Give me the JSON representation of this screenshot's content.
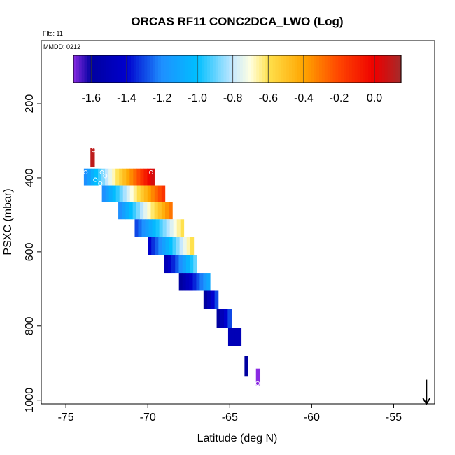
{
  "chart_data": {
    "type": "heatmap",
    "title": "ORCAS RF11 CONC2DCA_LWO (Log)",
    "flights_label": "Flts: 11",
    "date_label": "MMDD: 0212",
    "xlabel": "Latitude (deg N)",
    "ylabel": "PSXC (mbar)",
    "xlim": [
      -76.5,
      -52.5
    ],
    "ylim": [
      1010,
      30
    ],
    "y_reversed": true,
    "x_ticks": [
      -75,
      -70,
      -65,
      -60,
      -55
    ],
    "y_ticks": [
      200,
      400,
      600,
      800,
      1000
    ],
    "colorbar": {
      "range": [
        -1.7,
        0.15
      ],
      "ticks": [
        -1.6,
        -1.4,
        -1.2,
        -1.0,
        -0.8,
        -0.6,
        -0.4,
        -0.2,
        0.0
      ],
      "tick_labels": [
        "-1.6",
        "-1.4",
        "-1.2",
        "-1.0",
        "-0.8",
        "-0.6",
        "-0.4",
        "-0.2",
        "0.0"
      ],
      "divisions": [
        -1.6,
        -1.4,
        -1.2,
        -1.0,
        -0.8,
        -0.6,
        -0.4,
        -0.2,
        0.0
      ],
      "stops": [
        {
          "v": -1.7,
          "c": "#8a2be2"
        },
        {
          "v": -1.6,
          "c": "#0000a0"
        },
        {
          "v": -1.4,
          "c": "#0000cd"
        },
        {
          "v": -1.2,
          "c": "#1e90ff"
        },
        {
          "v": -1.0,
          "c": "#00bfff"
        },
        {
          "v": -0.8,
          "c": "#c6e8ff"
        },
        {
          "v": -0.7,
          "c": "#ffffe0"
        },
        {
          "v": -0.6,
          "c": "#ffe14d"
        },
        {
          "v": -0.4,
          "c": "#ffa500"
        },
        {
          "v": -0.2,
          "c": "#ff4500"
        },
        {
          "v": 0.0,
          "c": "#ee0000"
        },
        {
          "v": 0.15,
          "c": "#a52a2a"
        }
      ]
    },
    "rows": [
      {
        "lat_start": -73.5,
        "lat_end": -73.25,
        "p_top": 320,
        "p_bot": 370,
        "v_start": 0.1,
        "v_end": 0.1
      },
      {
        "lat_start": -73.9,
        "lat_end": -69.6,
        "p_top": 375,
        "p_bot": 420,
        "v_start": -1.2,
        "v_end": 0.05
      },
      {
        "lat_start": -72.8,
        "lat_end": -68.95,
        "p_top": 420,
        "p_bot": 465,
        "v_start": -1.2,
        "v_end": -0.15
      },
      {
        "lat_start": -71.8,
        "lat_end": -68.5,
        "p_top": 465,
        "p_bot": 512,
        "v_start": -1.2,
        "v_end": -0.3
      },
      {
        "lat_start": -70.8,
        "lat_end": -67.8,
        "p_top": 512,
        "p_bot": 560,
        "v_start": -1.3,
        "v_end": -0.6
      },
      {
        "lat_start": -70.0,
        "lat_end": -67.2,
        "p_top": 560,
        "p_bot": 608,
        "v_start": -1.4,
        "v_end": -0.6
      },
      {
        "lat_start": -69.0,
        "lat_end": -67.0,
        "p_top": 608,
        "p_bot": 657,
        "v_start": -1.5,
        "v_end": -0.9
      },
      {
        "lat_start": -68.1,
        "lat_end": -66.2,
        "p_top": 657,
        "p_bot": 705,
        "v_start": -1.6,
        "v_end": -1.1
      },
      {
        "lat_start": -66.6,
        "lat_end": -65.7,
        "p_top": 705,
        "p_bot": 755,
        "v_start": -1.6,
        "v_end": -1.3
      },
      {
        "lat_start": -65.8,
        "lat_end": -64.9,
        "p_top": 755,
        "p_bot": 805,
        "v_start": -1.6,
        "v_end": -1.3
      },
      {
        "lat_start": -65.1,
        "lat_end": -64.3,
        "p_top": 805,
        "p_bot": 855,
        "v_start": -1.5,
        "v_end": -1.5
      },
      {
        "lat_start": -64.1,
        "lat_end": -63.9,
        "p_top": 880,
        "p_bot": 935,
        "v_start": -1.6,
        "v_end": -1.6
      },
      {
        "lat_start": -63.4,
        "lat_end": -63.15,
        "p_top": 915,
        "p_bot": 960,
        "v_start": -1.7,
        "v_end": -1.7
      }
    ],
    "markers": [
      {
        "lat": -73.3,
        "p": 325
      },
      {
        "lat": -73.8,
        "p": 385
      },
      {
        "lat": -72.8,
        "p": 385
      },
      {
        "lat": -72.6,
        "p": 395
      },
      {
        "lat": -69.8,
        "p": 385
      },
      {
        "lat": -73.2,
        "p": 405
      },
      {
        "lat": -72.9,
        "p": 415
      },
      {
        "lat": -63.3,
        "p": 955
      }
    ],
    "arrow": {
      "lat": -53.0,
      "p_from": 945,
      "p_to": 1010
    }
  }
}
